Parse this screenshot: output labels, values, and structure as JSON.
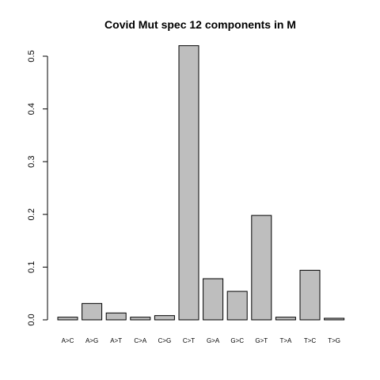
{
  "chart_data": {
    "type": "bar",
    "title": "Covid Mut spec 12 components in M",
    "xlabel": "",
    "ylabel": "",
    "categories": [
      "A>C",
      "A>G",
      "A>T",
      "C>A",
      "C>G",
      "C>T",
      "G>A",
      "G>C",
      "G>T",
      "T>A",
      "T>C",
      "T>G"
    ],
    "values": [
      0.005,
      0.031,
      0.013,
      0.005,
      0.008,
      0.52,
      0.078,
      0.054,
      0.198,
      0.005,
      0.094,
      0.003
    ],
    "yticks": [
      "0.0",
      "0.1",
      "0.2",
      "0.3",
      "0.4",
      "0.5"
    ],
    "ylim": [
      0,
      0.52
    ],
    "grid": false,
    "bar_color": "#bebebe",
    "border_color": "#000000"
  }
}
